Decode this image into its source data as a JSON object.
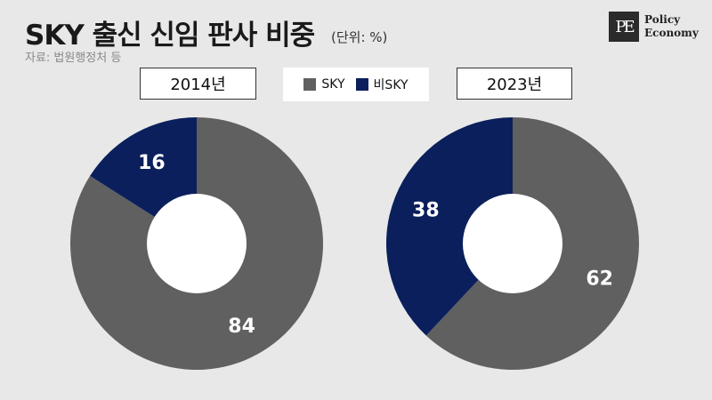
{
  "header": {
    "title": "SKY 출신 신임 판사 비중",
    "unit": "(단위: %)",
    "source": "자료: 법원행정처 등"
  },
  "logo": {
    "mark": "PE",
    "line1": "Policy",
    "line2": "Economy"
  },
  "colors": {
    "sky": "#606060",
    "non_sky": "#0b1f5c",
    "background": "#e8e8e8"
  },
  "chart_data": [
    {
      "type": "pie",
      "variant": "donut",
      "title": "2014년",
      "categories": [
        "SKY",
        "비SKY"
      ],
      "values": [
        84,
        16
      ],
      "unit": "%"
    },
    {
      "type": "pie",
      "variant": "donut",
      "title": "2023년",
      "categories": [
        "SKY",
        "비SKY"
      ],
      "values": [
        62,
        38
      ],
      "unit": "%"
    }
  ],
  "legend": {
    "items": [
      {
        "label": "SKY",
        "color": "#606060"
      },
      {
        "label": "비SKY",
        "color": "#0b1f5c"
      }
    ],
    "placement": "top-center"
  }
}
